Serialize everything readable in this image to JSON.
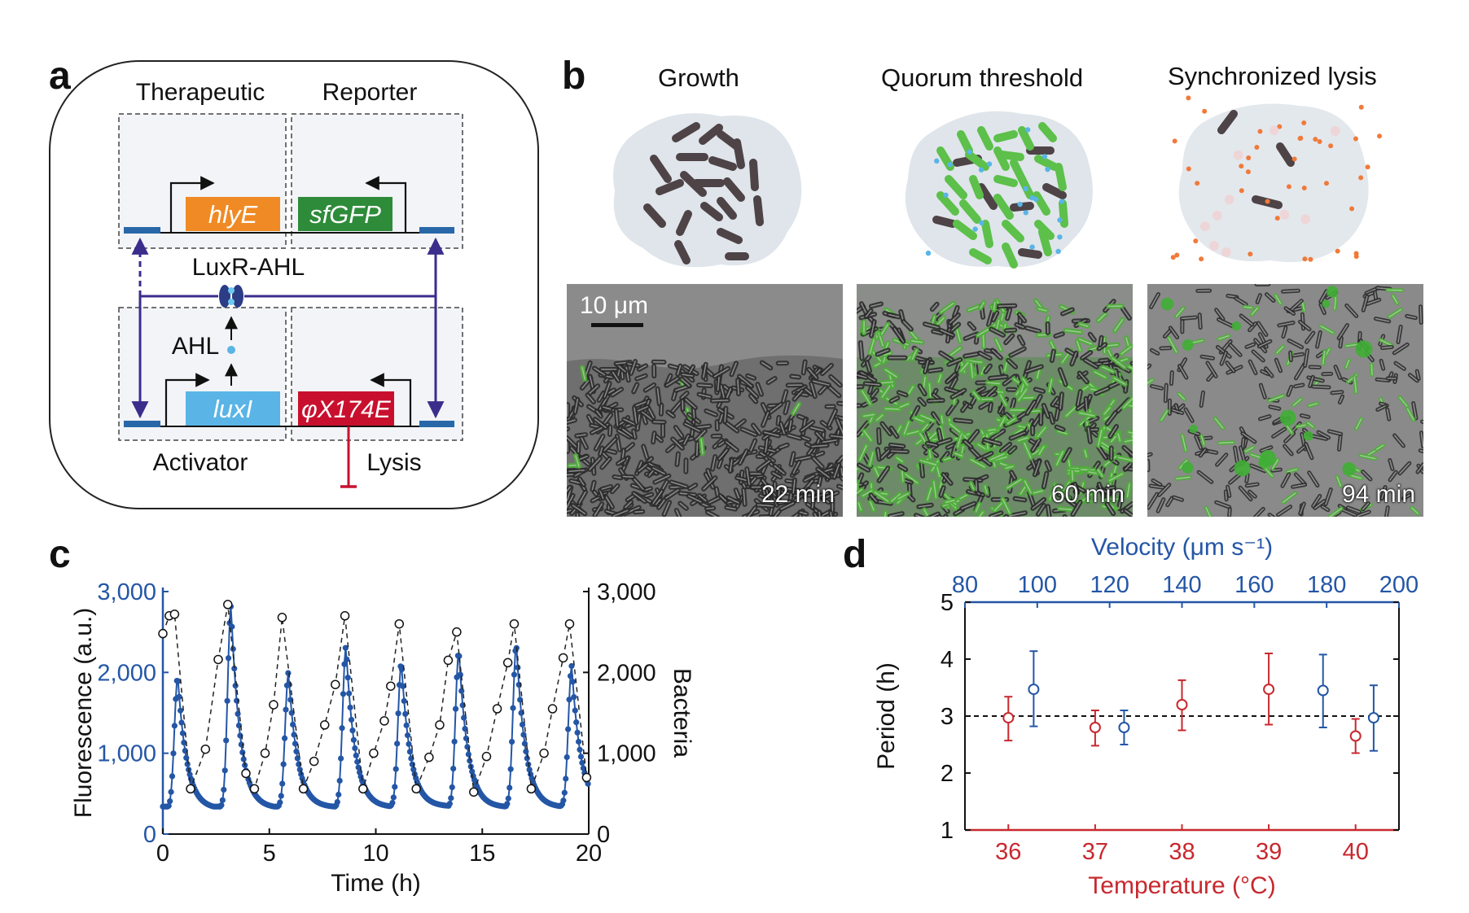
{
  "figure": {
    "panels": [
      "a",
      "b",
      "c",
      "d"
    ]
  },
  "panel_a": {
    "label": "a",
    "module_therapeutic": "Therapeutic",
    "module_reporter": "Reporter",
    "module_activator": "Activator",
    "module_lysis": "Lysis",
    "gene_hlyE": "hlyE",
    "gene_sfGFP": "sfGFP",
    "gene_luxI": "luxI",
    "gene_phiX174E": "φX174E",
    "luxr_ahl": "LuxR-AHL",
    "ahl": "AHL",
    "colors": {
      "hlyE": "#f08a24",
      "sfGFP": "#2e8b3a",
      "luxI": "#5ab4e6",
      "phiX174E": "#c8102e",
      "link": "#3a2d8c",
      "repress": "#c8102e"
    }
  },
  "panel_b": {
    "label": "b",
    "stage_growth": "Growth",
    "stage_quorum": "Quorum threshold",
    "stage_lysis": "Synchronized lysis",
    "scale_bar": "10 μm",
    "time_1": "22 min",
    "time_2": "60 min",
    "time_3": "94 min"
  },
  "chart_data": [
    {
      "panel": "c",
      "type": "line",
      "xlabel": "Time (h)",
      "ylabel_left": "Fluorescence (a.u.)",
      "ylabel_right": "Bacteria",
      "xlim": [
        0,
        20
      ],
      "ylim_left": [
        0,
        3000
      ],
      "ylim_right": [
        0,
        3000
      ],
      "x_ticks": [
        "0",
        "5",
        "10",
        "15",
        "20"
      ],
      "y_ticks_left": [
        "0",
        "1,000",
        "2,000",
        "3,000"
      ],
      "y_ticks_right": [
        "0",
        "1,000",
        "2,000",
        "3,000"
      ],
      "colors": {
        "fluorescence": "#2456a6",
        "bacteria": "#222222"
      },
      "peaks": [
        {
          "t": 0.7,
          "v": 1950,
          "min": 310
        },
        {
          "t": 3.2,
          "v": 2820,
          "min": 320
        },
        {
          "t": 5.9,
          "v": 2000,
          "min": 330
        },
        {
          "t": 8.6,
          "v": 2320,
          "min": 330
        },
        {
          "t": 11.2,
          "v": 2120,
          "min": 340
        },
        {
          "t": 13.9,
          "v": 2270,
          "min": 330
        },
        {
          "t": 16.6,
          "v": 2350,
          "min": 330
        },
        {
          "t": 19.2,
          "v": 2080,
          "min": 340
        }
      ],
      "series": [
        {
          "name": "Bacteria",
          "x": [
            0,
            0.3,
            0.55,
            1.3,
            2.0,
            2.6,
            3.05,
            3.9,
            4.3,
            4.8,
            5.2,
            5.6,
            6.6,
            7.1,
            7.6,
            8.1,
            8.55,
            9.4,
            9.9,
            10.4,
            10.7,
            11.1,
            11.9,
            12.5,
            13.0,
            13.4,
            13.8,
            14.6,
            15.2,
            15.7,
            16.2,
            16.5,
            17.3,
            17.9,
            18.3,
            18.8,
            19.1,
            19.9
          ],
          "y": [
            2480,
            2700,
            2720,
            560,
            1050,
            2160,
            2840,
            750,
            560,
            1000,
            1600,
            2680,
            560,
            900,
            1350,
            1850,
            2700,
            560,
            1000,
            1400,
            1830,
            2600,
            560,
            950,
            1350,
            2150,
            2500,
            520,
            960,
            1550,
            2120,
            2600,
            560,
            1000,
            1550,
            2180,
            2600,
            700
          ]
        }
      ]
    },
    {
      "panel": "d",
      "type": "scatter",
      "xlabel_bottom": "Temperature (°C)",
      "xlabel_top": "Velocity (μm s⁻¹)",
      "ylabel": "Period (h)",
      "xlim_bottom": [
        35.5,
        40.5
      ],
      "xlim_top": [
        80,
        200
      ],
      "ylim": [
        1,
        5
      ],
      "x_ticks_bottom": [
        "36",
        "37",
        "38",
        "39",
        "40"
      ],
      "x_ticks_top": [
        "80",
        "100",
        "120",
        "140",
        "160",
        "180",
        "200"
      ],
      "y_ticks": [
        "1",
        "2",
        "3",
        "4",
        "5"
      ],
      "reference_line": 3,
      "colors": {
        "temperature": "#c8282e",
        "velocity": "#2456a6"
      },
      "series": [
        {
          "name": "Temperature",
          "x": [
            36,
            37,
            38,
            39,
            40
          ],
          "y": [
            2.97,
            2.8,
            3.2,
            3.47,
            2.65
          ],
          "err_low": [
            0.4,
            0.32,
            0.45,
            0.62,
            0.3
          ],
          "err_high": [
            0.37,
            0.3,
            0.43,
            0.63,
            0.3
          ]
        },
        {
          "name": "Velocity",
          "x": [
            99,
            124,
            179,
            193
          ],
          "y": [
            3.47,
            2.8,
            3.45,
            2.97
          ],
          "err_low": [
            0.65,
            0.3,
            0.65,
            0.58
          ],
          "err_high": [
            0.67,
            0.3,
            0.63,
            0.57
          ]
        }
      ]
    }
  ]
}
